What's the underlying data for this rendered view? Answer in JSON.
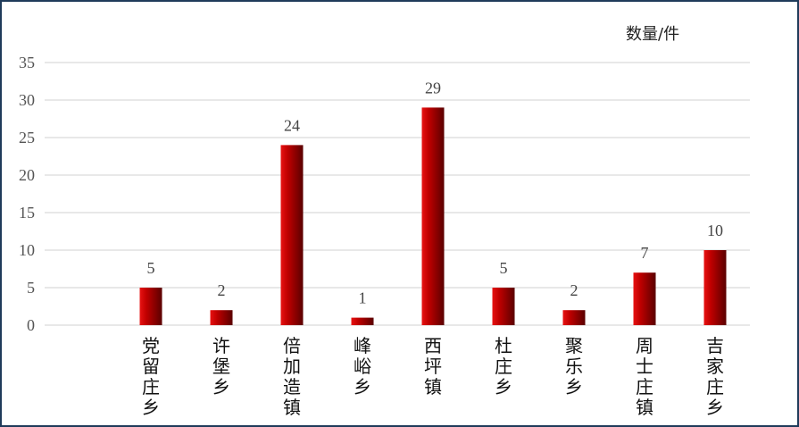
{
  "chart_data": {
    "type": "bar",
    "unit_label": "数量/件",
    "categories": [
      "党留庄乡",
      "许堡乡",
      "倍加造镇",
      "峰峪乡",
      "西坪镇",
      "杜庄乡",
      "聚乐乡",
      "周士庄镇",
      "吉家庄乡"
    ],
    "values": [
      5,
      2,
      24,
      1,
      29,
      5,
      2,
      7,
      10
    ],
    "ylim": [
      0,
      35
    ],
    "yticks": [
      0,
      5,
      10,
      15,
      20,
      25,
      30,
      35
    ],
    "grid": true,
    "bar_color": "#c00000",
    "bar_dark": "#5a0000",
    "bar_light": "#e81212",
    "grid_color": "#d0d0d0",
    "border_color": "#1f3b5a"
  }
}
